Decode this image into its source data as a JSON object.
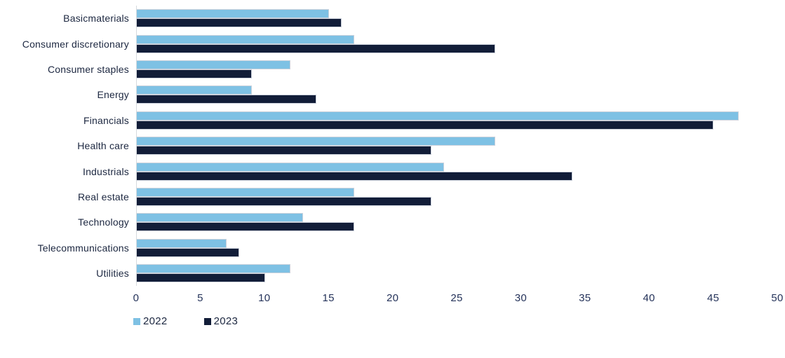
{
  "chart_data": {
    "type": "bar",
    "orientation": "horizontal",
    "title": "",
    "xlabel": "",
    "ylabel": "",
    "categories": [
      "Basicmaterials",
      "Consumer discretionary",
      "Consumer staples",
      "Energy",
      "Financials",
      "Health care",
      "Industrials",
      "Real estate",
      "Technology",
      "Telecommunications",
      "Utilities"
    ],
    "series": [
      {
        "name": "2022",
        "color": "#7ec1e4",
        "values": [
          15,
          17,
          12,
          9,
          47,
          28,
          24,
          17,
          13,
          7,
          12
        ]
      },
      {
        "name": "2023",
        "color": "#121d38",
        "values": [
          16,
          28,
          9,
          14,
          45,
          23,
          34,
          23,
          17,
          8,
          10
        ]
      }
    ],
    "xlim": [
      0,
      50
    ],
    "xticks": [
      0,
      5,
      10,
      15,
      20,
      25,
      30,
      35,
      40,
      45,
      50
    ],
    "grid": false,
    "legend_position": "bottom-left",
    "colors": {
      "background": "#ffffff",
      "axis_line": "#d6dade",
      "bar_border": "#ccd2dc",
      "text": "#1c2740",
      "tick_text": "#25335a"
    }
  }
}
